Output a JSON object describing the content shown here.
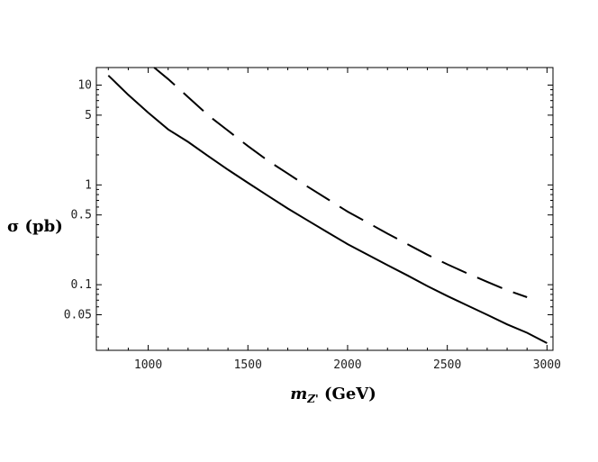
{
  "chart_data": {
    "type": "line",
    "title": "",
    "xlabel": "m",
    "xlabel_sub": "Z'",
    "xlabel_unit": " (GeV)",
    "ylabel": "σ (pb)",
    "xlim": [
      740,
      3030
    ],
    "ylim": [
      0.022,
      15
    ],
    "yscale": "log",
    "grid": false,
    "legend": "none",
    "x_ticks": [
      1000,
      1500,
      2000,
      2500,
      3000
    ],
    "x_tick_labels": [
      "1000",
      "1500",
      "2000",
      "2500",
      "3000"
    ],
    "y_ticks": [
      0.05,
      0.1,
      0.5,
      1,
      5,
      10
    ],
    "y_tick_labels": [
      "0.05",
      "0.1",
      "0.5",
      "1",
      "5",
      "10"
    ],
    "series": [
      {
        "style": "solid",
        "color": "#000000",
        "points": [
          [
            800,
            12.5
          ],
          [
            900,
            8.0
          ],
          [
            1000,
            5.3
          ],
          [
            1100,
            3.6
          ],
          [
            1200,
            2.7
          ],
          [
            1300,
            1.95
          ],
          [
            1400,
            1.42
          ],
          [
            1500,
            1.05
          ],
          [
            1600,
            0.78
          ],
          [
            1700,
            0.58
          ],
          [
            1800,
            0.44
          ],
          [
            1900,
            0.335
          ],
          [
            2000,
            0.255
          ],
          [
            2100,
            0.2
          ],
          [
            2200,
            0.157
          ],
          [
            2300,
            0.124
          ],
          [
            2400,
            0.097
          ],
          [
            2500,
            0.077
          ],
          [
            2600,
            0.062
          ],
          [
            2700,
            0.05
          ],
          [
            2800,
            0.04
          ],
          [
            2900,
            0.033
          ],
          [
            3000,
            0.026
          ]
        ]
      },
      {
        "style": "dashed",
        "color": "#000000",
        "points": [
          [
            1030,
            15.0
          ],
          [
            1100,
            11.5
          ],
          [
            1200,
            7.6
          ],
          [
            1300,
            5.0
          ],
          [
            1400,
            3.5
          ],
          [
            1500,
            2.45
          ],
          [
            1600,
            1.75
          ],
          [
            1700,
            1.3
          ],
          [
            1800,
            0.96
          ],
          [
            1900,
            0.72
          ],
          [
            2000,
            0.54
          ],
          [
            2100,
            0.42
          ],
          [
            2200,
            0.325
          ],
          [
            2300,
            0.255
          ],
          [
            2400,
            0.2
          ],
          [
            2500,
            0.16
          ],
          [
            2600,
            0.13
          ],
          [
            2700,
            0.107
          ],
          [
            2800,
            0.088
          ],
          [
            2900,
            0.075
          ]
        ]
      }
    ]
  }
}
